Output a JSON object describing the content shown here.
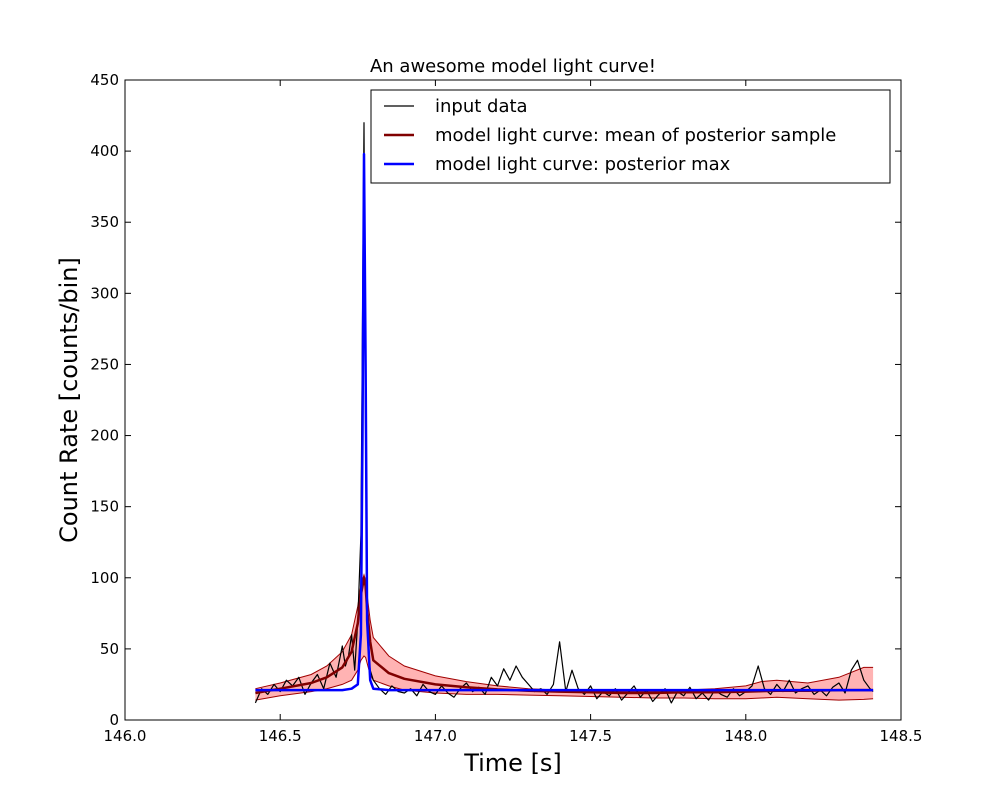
{
  "chart_data": {
    "type": "line",
    "title": "An awesome model light curve!",
    "xlabel": "Time [s]",
    "ylabel": "Count Rate [counts/bin]",
    "xlim": [
      146.0,
      148.5
    ],
    "ylim": [
      0,
      450
    ],
    "xticks": [
      146.0,
      146.5,
      147.0,
      147.5,
      148.0,
      148.5
    ],
    "xtick_labels": [
      "146.0",
      "146.5",
      "147.0",
      "147.5",
      "148.0",
      "148.5"
    ],
    "yticks": [
      0,
      50,
      100,
      150,
      200,
      250,
      300,
      350,
      400,
      450
    ],
    "ytick_labels": [
      "0",
      "50",
      "100",
      "150",
      "200",
      "250",
      "300",
      "350",
      "400",
      "450"
    ],
    "grid": false,
    "legend_position": "top-right",
    "legend": [
      {
        "label": "input data",
        "color": "#000000"
      },
      {
        "label": "model light curve: mean of posterior sample",
        "color": "#800000"
      },
      {
        "label": "model light curve: posterior max",
        "color": "#0000ff"
      }
    ],
    "band_fill": "#ff9999",
    "band_edge": "#a00000",
    "series": [
      {
        "name": "input data",
        "color": "#000000",
        "x": [
          146.42,
          146.44,
          146.46,
          146.48,
          146.5,
          146.52,
          146.54,
          146.56,
          146.58,
          146.6,
          146.62,
          146.64,
          146.66,
          146.68,
          146.7,
          146.71,
          146.72,
          146.73,
          146.74,
          146.75,
          146.76,
          146.765,
          146.77,
          146.775,
          146.78,
          146.785,
          146.79,
          146.8,
          146.82,
          146.84,
          146.86,
          146.88,
          146.9,
          146.92,
          146.94,
          146.96,
          146.98,
          147.0,
          147.02,
          147.04,
          147.06,
          147.08,
          147.1,
          147.12,
          147.14,
          147.16,
          147.18,
          147.2,
          147.22,
          147.24,
          147.26,
          147.28,
          147.3,
          147.32,
          147.34,
          147.36,
          147.38,
          147.4,
          147.42,
          147.44,
          147.46,
          147.48,
          147.5,
          147.52,
          147.54,
          147.56,
          147.58,
          147.6,
          147.62,
          147.64,
          147.66,
          147.68,
          147.7,
          147.72,
          147.74,
          147.76,
          147.78,
          147.8,
          147.82,
          147.84,
          147.86,
          147.88,
          147.9,
          147.92,
          147.94,
          147.96,
          147.98,
          148.0,
          148.02,
          148.04,
          148.06,
          148.08,
          148.1,
          148.12,
          148.14,
          148.16,
          148.18,
          148.2,
          148.22,
          148.24,
          148.26,
          148.28,
          148.3,
          148.32,
          148.34,
          148.36,
          148.38,
          148.4,
          148.41
        ],
        "y": [
          12,
          22,
          18,
          25,
          20,
          28,
          24,
          30,
          18,
          26,
          32,
          22,
          40,
          30,
          52,
          38,
          45,
          60,
          35,
          70,
          130,
          280,
          420,
          200,
          80,
          45,
          35,
          28,
          22,
          18,
          24,
          20,
          19,
          22,
          17,
          25,
          20,
          18,
          24,
          19,
          16,
          22,
          26,
          20,
          23,
          18,
          30,
          24,
          36,
          28,
          38,
          30,
          25,
          20,
          22,
          18,
          25,
          55,
          20,
          35,
          22,
          18,
          24,
          15,
          20,
          17,
          22,
          14,
          19,
          24,
          16,
          21,
          13,
          18,
          22,
          12,
          20,
          17,
          23,
          15,
          19,
          14,
          21,
          18,
          16,
          22,
          17,
          20,
          24,
          38,
          22,
          18,
          25,
          20,
          28,
          19,
          22,
          24,
          18,
          21,
          17,
          23,
          26,
          19,
          35,
          42,
          28,
          22,
          20
        ]
      },
      {
        "name": "model light curve: mean of posterior sample",
        "color": "#800000",
        "x": [
          146.42,
          146.5,
          146.6,
          146.65,
          146.7,
          146.73,
          146.75,
          146.76,
          146.77,
          146.775,
          146.78,
          146.79,
          146.8,
          146.85,
          146.9,
          147.0,
          147.1,
          147.2,
          147.3,
          147.4,
          147.5,
          147.6,
          147.7,
          147.8,
          147.9,
          148.0,
          148.1,
          148.2,
          148.3,
          148.41
        ],
        "y": [
          19,
          22,
          26,
          30,
          37,
          48,
          68,
          88,
          100,
          94,
          78,
          55,
          42,
          33,
          29,
          25,
          23,
          21.5,
          20.5,
          20,
          19.5,
          19,
          19,
          19.5,
          19.5,
          20,
          20.5,
          20.5,
          21,
          21
        ]
      },
      {
        "name": "model light curve: posterior max",
        "color": "#0000ff",
        "x": [
          146.42,
          146.5,
          146.6,
          146.7,
          146.73,
          146.75,
          146.76,
          146.765,
          146.77,
          146.775,
          146.78,
          146.79,
          146.8,
          146.85,
          147.0,
          147.5,
          148.0,
          148.41
        ],
        "y": [
          21,
          21,
          21,
          21,
          22,
          25,
          60,
          200,
          398,
          250,
          70,
          28,
          22,
          21,
          21,
          21,
          21,
          21
        ]
      }
    ],
    "band": {
      "x": [
        146.42,
        146.5,
        146.6,
        146.65,
        146.7,
        146.73,
        146.75,
        146.76,
        146.77,
        146.775,
        146.78,
        146.79,
        146.8,
        146.85,
        146.9,
        147.0,
        147.1,
        147.2,
        147.3,
        147.4,
        147.5,
        147.6,
        147.7,
        147.8,
        147.9,
        148.0,
        148.05,
        148.1,
        148.2,
        148.3,
        148.38,
        148.41
      ],
      "upper": [
        22,
        26,
        32,
        38,
        48,
        60,
        80,
        95,
        102,
        98,
        88,
        70,
        58,
        45,
        38,
        31,
        27,
        24,
        22,
        21,
        20.5,
        20,
        20,
        21,
        22,
        24,
        27,
        28,
        26,
        30,
        37,
        37
      ],
      "lower": [
        14,
        17,
        20,
        22,
        25,
        28,
        35,
        42,
        45,
        44,
        40,
        32,
        28,
        24,
        21,
        19,
        18,
        18,
        17.5,
        17,
        16.5,
        16,
        15.5,
        15.5,
        15,
        15,
        15.5,
        16,
        15,
        14,
        14.5,
        15
      ]
    }
  }
}
